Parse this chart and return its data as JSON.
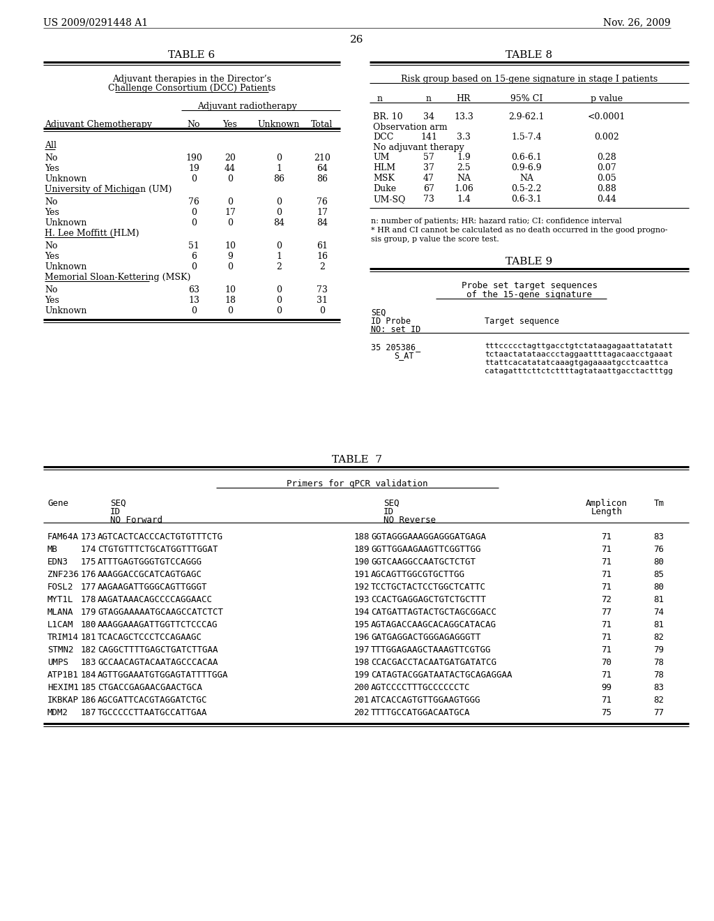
{
  "header_left": "US 2009/0291448 A1",
  "header_right": "Nov. 26, 2009",
  "page_number": "26",
  "background_color": "#ffffff",
  "text_color": "#000000",
  "table6_title": "TABLE 6",
  "table6_subtitle1": "Adjuvant therapies in the Director’s",
  "table6_subtitle2": "Challenge Consortium (DCC) Patients",
  "table6_col_header": "Adjuvant radiotherapy",
  "table6_data": [
    [
      "All",
      "",
      "",
      "",
      ""
    ],
    [
      "No",
      "190",
      "20",
      "0",
      "210"
    ],
    [
      "Yes",
      "19",
      "44",
      "1",
      "64"
    ],
    [
      "Unknown",
      "0",
      "0",
      "86",
      "86"
    ],
    [
      "University of Michigan (UM)",
      "",
      "",
      "",
      ""
    ],
    [
      "No",
      "76",
      "0",
      "0",
      "76"
    ],
    [
      "Yes",
      "0",
      "17",
      "0",
      "17"
    ],
    [
      "Unknown",
      "0",
      "0",
      "84",
      "84"
    ],
    [
      "H. Lee Moffitt (HLM)",
      "",
      "",
      "",
      ""
    ],
    [
      "No",
      "51",
      "10",
      "0",
      "61"
    ],
    [
      "Yes",
      "6",
      "9",
      "1",
      "16"
    ],
    [
      "Unknown",
      "0",
      "0",
      "2",
      "2"
    ],
    [
      "Memorial Sloan-Kettering (MSK)",
      "",
      "",
      "",
      ""
    ],
    [
      "No",
      "63",
      "10",
      "0",
      "73"
    ],
    [
      "Yes",
      "13",
      "18",
      "0",
      "31"
    ],
    [
      "Unknown",
      "0",
      "0",
      "0",
      "0"
    ]
  ],
  "table8_title": "TABLE 8",
  "table8_subtitle": "Risk group based on 15-gene signature in stage I patients",
  "table8_data": [
    [
      "BR. 10",
      "34",
      "13.3",
      "2.9-62.1",
      "<0.0001"
    ],
    [
      "Observation arm",
      "",
      "",
      "",
      ""
    ],
    [
      "DCC",
      "141",
      "3.3",
      "1.5-7.4",
      "0.002"
    ],
    [
      "No adjuvant therapy",
      "",
      "",
      "",
      ""
    ],
    [
      "UM",
      "57",
      "1.9",
      "0.6-6.1",
      "0.28"
    ],
    [
      "HLM",
      "37",
      "2.5",
      "0.9-6.9",
      "0.07"
    ],
    [
      "MSK",
      "47",
      "NA",
      "NA",
      "0.05"
    ],
    [
      "Duke",
      "67",
      "1.06",
      "0.5-2.2",
      "0.88"
    ],
    [
      "UM-SQ",
      "73",
      "1.4",
      "0.6-3.1",
      "0.44"
    ]
  ],
  "table8_footnote1": "n: number of patients; HR: hazard ratio; CI: confidence interval",
  "table8_footnote2": "* HR and CI cannot be calculated as no death occurred in the good progno-",
  "table8_footnote3": "sis group, p value the score test.",
  "table9_title": "TABLE 9",
  "table9_subtitle1": "Probe set target sequences",
  "table9_subtitle2": "of the 15-gene signature",
  "table9_seq1": "tttccccctagttgacctgtctataagagaattatatatt",
  "table9_seq2": "tctaactatataaccctaggaattttagacaacctgaaat",
  "table9_seq3": "ttattcacatatatcaaagtgagaaaatgcctcaattca",
  "table9_seq4": "catagatttcttctcttttagtataattgacctactttgg",
  "table7_title": "TABLE  7",
  "table7_subtitle": "Primers for qPCR validation",
  "table7_data": [
    [
      "FAM64A",
      "173",
      "AGTCACTCACCCACTGTGTTTCTG",
      "188",
      "GGTAGGGAAAGGAGGGATGAGA",
      "71",
      "83"
    ],
    [
      "MB",
      "174",
      "CTGTGTTTCTGCATGGTTTGGAT",
      "189",
      "GGTTGGAAGAAGTTCGGTTGG",
      "71",
      "76"
    ],
    [
      "EDN3",
      "175",
      "ATTTGAGTGGGTGTCCAGGG",
      "190",
      "GGTCAAGGCCAATGCTCTGT",
      "71",
      "80"
    ],
    [
      "ZNF236",
      "176",
      "AAAGGACCGCATCAGTGAGC",
      "191",
      "AGCAGTTGGCGTGCTTGG",
      "71",
      "85"
    ],
    [
      "FOSL2",
      "177",
      "AAGAAGATTGGGCAGTTGGGT",
      "192",
      "TCCTGCTACTCCTGGCTCATTC",
      "71",
      "80"
    ],
    [
      "MYT1L",
      "178",
      "AAGATAAACAGCCCCAGGAACC",
      "193",
      "CCACTGAGGAGCTGTCTGCTTT",
      "72",
      "81"
    ],
    [
      "MLANA",
      "179",
      "GTAGGAAAAATGCAAGCCATCTCT",
      "194",
      "CATGATTAGTACTGCTAGCGGACC",
      "77",
      "74"
    ],
    [
      "L1CAM",
      "180",
      "AAAGGAAAGATTGGTTCTCCCAG",
      "195",
      "AGTAGACCAAGCACAGGCATACAG",
      "71",
      "81"
    ],
    [
      "TRIM14",
      "181",
      "TCACAGCTCCCTCCAGAAGC",
      "196",
      "GATGAGGACTGGGAGAGGGTT",
      "71",
      "82"
    ],
    [
      "STMN2",
      "182",
      "CAGGCTTTTGAGCTGATCTTGAA",
      "197",
      "TTTGGAGAAGCTAAAGTTCGTGG",
      "71",
      "79"
    ],
    [
      "UMPS",
      "183",
      "GCCAACAGTACAATAGCCCACAA",
      "198",
      "CCACGACCTACAATGATGATATCG",
      "70",
      "78"
    ],
    [
      "ATP1B1",
      "184",
      "AGTTGGAAATGTGGAGTATTTTGGA",
      "199",
      "CATAGTACGGATAATACTGCAGAGGAA",
      "71",
      "78"
    ],
    [
      "HEXIM1",
      "185",
      "CTGACCGAGAACGAACTGCA",
      "200",
      "AGTCCCCTTTGCCCCCCTC",
      "99",
      "83"
    ],
    [
      "IKBKAP",
      "186",
      "AGCGATTCACGTAGGATCTGC",
      "201",
      "ATCACCAGTGTTGGAAGTGGG",
      "71",
      "82"
    ],
    [
      "MDM2",
      "187",
      "TGCCCCCTTAATGCCATTGAA",
      "202",
      "TTTTGCCATGGACAATGCA",
      "75",
      "77"
    ]
  ]
}
